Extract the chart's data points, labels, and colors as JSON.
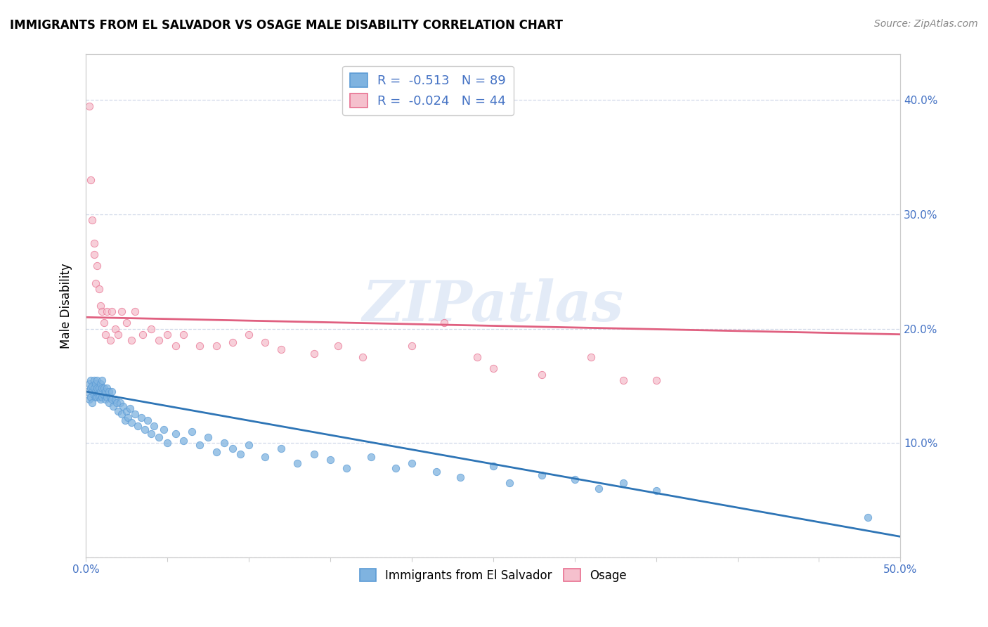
{
  "title": "IMMIGRANTS FROM EL SALVADOR VS OSAGE MALE DISABILITY CORRELATION CHART",
  "source": "Source: ZipAtlas.com",
  "ylabel": "Male Disability",
  "xlim": [
    0.0,
    0.5
  ],
  "ylim": [
    0.0,
    0.44
  ],
  "x_ticks": [
    0.0,
    0.05,
    0.1,
    0.15,
    0.2,
    0.25,
    0.3,
    0.35,
    0.4,
    0.45,
    0.5
  ],
  "x_tick_labels_bottom": [
    "0.0%",
    "",
    "",
    "",
    "",
    "",
    "",
    "",
    "",
    "",
    "50.0%"
  ],
  "y_ticks": [
    0.0,
    0.1,
    0.2,
    0.3,
    0.4
  ],
  "y_tick_labels_right": [
    "",
    "10.0%",
    "20.0%",
    "30.0%",
    "40.0%"
  ],
  "legend_entries": [
    {
      "label": "R =  -0.513   N = 89",
      "facecolor": "#aec6e8",
      "edgecolor": "#5b9bd5"
    },
    {
      "label": "R =  -0.024   N = 44",
      "facecolor": "#f9cdd9",
      "edgecolor": "#e87090"
    }
  ],
  "blue_scatter": {
    "x": [
      0.001,
      0.002,
      0.002,
      0.003,
      0.003,
      0.003,
      0.004,
      0.004,
      0.004,
      0.005,
      0.005,
      0.005,
      0.006,
      0.006,
      0.006,
      0.007,
      0.007,
      0.007,
      0.008,
      0.008,
      0.008,
      0.009,
      0.009,
      0.009,
      0.01,
      0.01,
      0.01,
      0.011,
      0.011,
      0.012,
      0.012,
      0.013,
      0.013,
      0.014,
      0.014,
      0.015,
      0.016,
      0.016,
      0.017,
      0.018,
      0.019,
      0.02,
      0.021,
      0.022,
      0.023,
      0.024,
      0.025,
      0.026,
      0.027,
      0.028,
      0.03,
      0.032,
      0.034,
      0.036,
      0.038,
      0.04,
      0.042,
      0.045,
      0.048,
      0.05,
      0.055,
      0.06,
      0.065,
      0.07,
      0.075,
      0.08,
      0.085,
      0.09,
      0.095,
      0.1,
      0.11,
      0.12,
      0.13,
      0.14,
      0.15,
      0.16,
      0.175,
      0.19,
      0.2,
      0.215,
      0.23,
      0.25,
      0.26,
      0.28,
      0.3,
      0.315,
      0.33,
      0.35,
      0.48
    ],
    "y": [
      0.145,
      0.138,
      0.152,
      0.148,
      0.155,
      0.14,
      0.145,
      0.15,
      0.135,
      0.148,
      0.142,
      0.155,
      0.14,
      0.152,
      0.145,
      0.148,
      0.14,
      0.155,
      0.142,
      0.148,
      0.14,
      0.145,
      0.152,
      0.138,
      0.148,
      0.14,
      0.155,
      0.142,
      0.148,
      0.138,
      0.145,
      0.14,
      0.148,
      0.135,
      0.145,
      0.14,
      0.138,
      0.145,
      0.132,
      0.138,
      0.135,
      0.128,
      0.135,
      0.125,
      0.132,
      0.12,
      0.128,
      0.122,
      0.13,
      0.118,
      0.125,
      0.115,
      0.122,
      0.112,
      0.12,
      0.108,
      0.115,
      0.105,
      0.112,
      0.1,
      0.108,
      0.102,
      0.11,
      0.098,
      0.105,
      0.092,
      0.1,
      0.095,
      0.09,
      0.098,
      0.088,
      0.095,
      0.082,
      0.09,
      0.085,
      0.078,
      0.088,
      0.078,
      0.082,
      0.075,
      0.07,
      0.08,
      0.065,
      0.072,
      0.068,
      0.06,
      0.065,
      0.058,
      0.035
    ]
  },
  "pink_scatter": {
    "x": [
      0.002,
      0.003,
      0.004,
      0.005,
      0.005,
      0.006,
      0.007,
      0.008,
      0.009,
      0.01,
      0.011,
      0.012,
      0.013,
      0.015,
      0.016,
      0.018,
      0.02,
      0.022,
      0.025,
      0.028,
      0.03,
      0.035,
      0.04,
      0.045,
      0.05,
      0.055,
      0.06,
      0.07,
      0.08,
      0.09,
      0.1,
      0.11,
      0.12,
      0.14,
      0.155,
      0.17,
      0.2,
      0.22,
      0.24,
      0.25,
      0.28,
      0.31,
      0.33,
      0.35
    ],
    "y": [
      0.395,
      0.33,
      0.295,
      0.265,
      0.275,
      0.24,
      0.255,
      0.235,
      0.22,
      0.215,
      0.205,
      0.195,
      0.215,
      0.19,
      0.215,
      0.2,
      0.195,
      0.215,
      0.205,
      0.19,
      0.215,
      0.195,
      0.2,
      0.19,
      0.195,
      0.185,
      0.195,
      0.185,
      0.185,
      0.188,
      0.195,
      0.188,
      0.182,
      0.178,
      0.185,
      0.175,
      0.185,
      0.205,
      0.175,
      0.165,
      0.16,
      0.175,
      0.155,
      0.155
    ]
  },
  "blue_line": {
    "x": [
      0.0,
      0.5
    ],
    "y": [
      0.145,
      0.018
    ]
  },
  "pink_line": {
    "x": [
      0.0,
      0.5
    ],
    "y": [
      0.21,
      0.195
    ]
  },
  "blue_dot_color": "#7fb3e0",
  "blue_edge_color": "#5b9bd5",
  "pink_dot_color": "#f5c0cd",
  "pink_edge_color": "#e87090",
  "blue_line_color": "#2e75b6",
  "pink_line_color": "#e06080",
  "watermark": "ZIPatlas",
  "grid_color": "#d0d8e8",
  "tick_color": "#4472c4",
  "legend_text_color": "#4472c4",
  "bottom_legend": [
    "Immigrants from El Salvador",
    "Osage"
  ]
}
